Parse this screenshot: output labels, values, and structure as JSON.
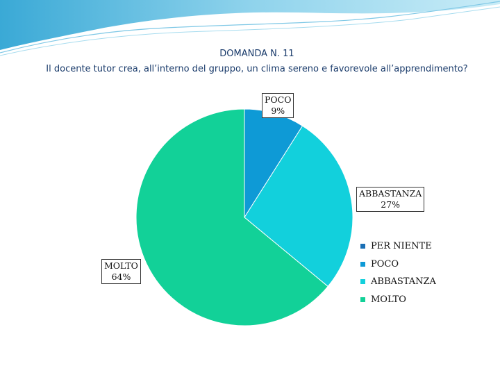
{
  "header": {
    "title": "DOMANDA N. 11",
    "subtitle": "Il docente tutor crea, all’interno del gruppo, un clima sereno e favorevole all’apprendimento?"
  },
  "chart_data": {
    "type": "pie",
    "title": "DOMANDA N. 11",
    "subtitle": "Il docente tutor crea, all’interno del gruppo, un clima sereno e favorevole all’apprendimento?",
    "categories": [
      "PER NIENTE",
      "POCO",
      "ABBASTANZA",
      "MOLTO"
    ],
    "values": [
      0,
      9,
      27,
      64
    ],
    "value_labels": [
      "",
      "9%",
      "27%",
      "64%"
    ],
    "colors": [
      "#1a6fb5",
      "#0e9ad6",
      "#12d0dc",
      "#12d198"
    ],
    "legend_position": "right"
  },
  "callouts": [
    {
      "name": "POCO",
      "value": "9%"
    },
    {
      "name": "ABBASTANZA",
      "value": "27%"
    },
    {
      "name": "MOLTO",
      "value": "64%"
    }
  ]
}
